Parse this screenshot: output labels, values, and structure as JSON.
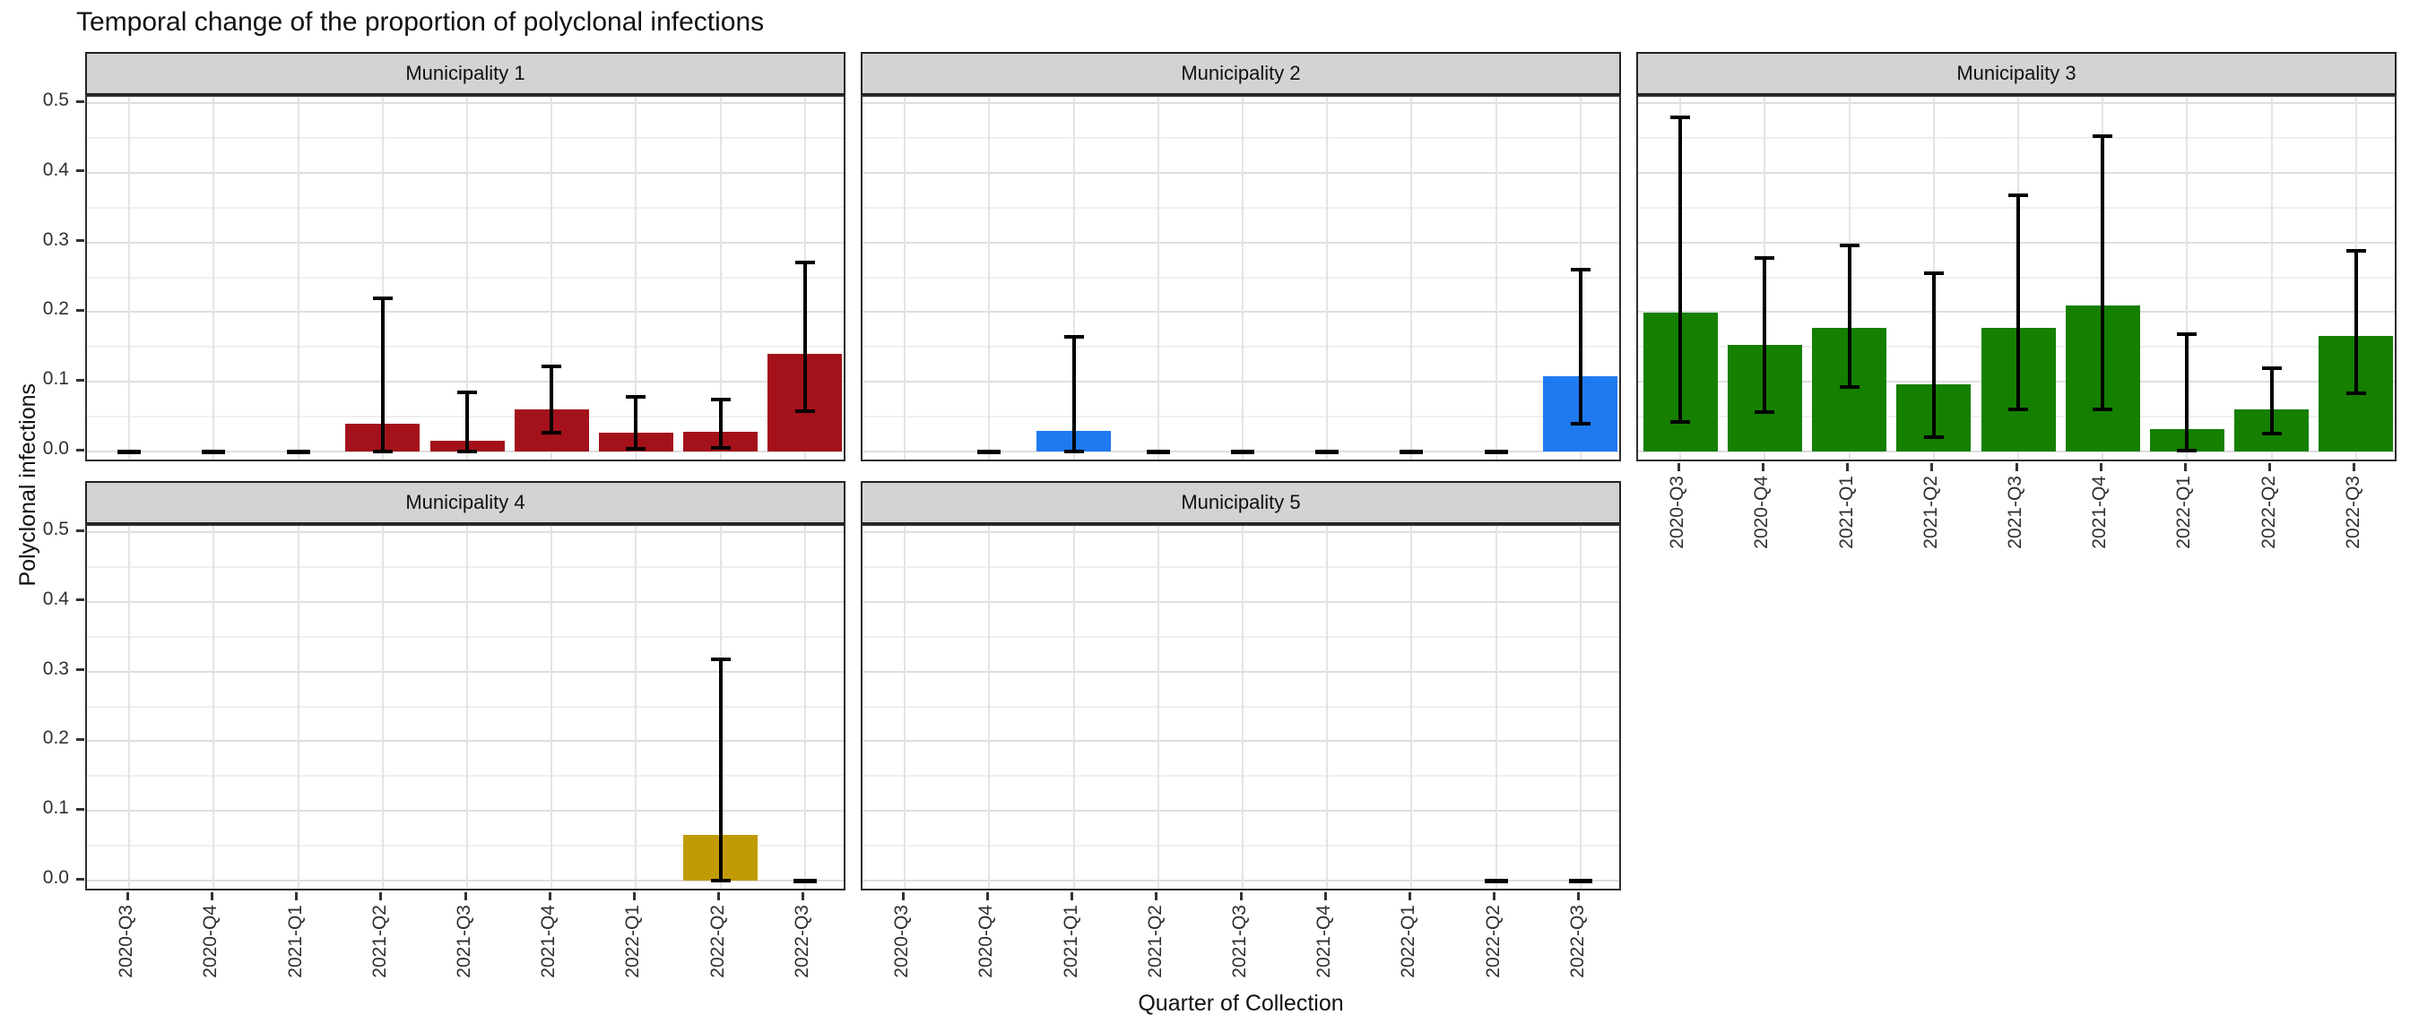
{
  "title": "Temporal change of the proportion of polyclonal infections",
  "axes": {
    "y_label": "Polyclonal infections",
    "x_label": "Quarter of Collection",
    "y_tick_labels": [
      "0.0",
      "0.1",
      "0.2",
      "0.3",
      "0.4",
      "0.5"
    ]
  },
  "chart_data": {
    "type": "bar",
    "subtype": "faceted-bar-with-error-bars",
    "categories": [
      "2020-Q3",
      "2020-Q4",
      "2021-Q1",
      "2021-Q2",
      "2021-Q3",
      "2021-Q4",
      "2022-Q1",
      "2022-Q2",
      "2022-Q3"
    ],
    "xlabel": "Quarter of Collection",
    "ylabel": "Polyclonal infections",
    "ylim": [
      0,
      0.5
    ],
    "grid": "horizontal major 0.1 steps + minor 0.05 steps; vertical major at category centers",
    "legend": "none",
    "facets": [
      {
        "name": "Municipality 1",
        "row": 0,
        "col": 0,
        "color": "#A3121A",
        "bars": [
          {
            "v": 0,
            "lo": 0,
            "hi": 0
          },
          {
            "v": 0,
            "lo": 0,
            "hi": 0
          },
          {
            "v": 0,
            "lo": 0,
            "hi": 0
          },
          {
            "v": 0.04,
            "lo": 0,
            "hi": 0.22
          },
          {
            "v": 0.015,
            "lo": 0,
            "hi": 0.085
          },
          {
            "v": 0.061,
            "lo": 0.027,
            "hi": 0.122
          },
          {
            "v": 0.027,
            "lo": 0.004,
            "hi": 0.079
          },
          {
            "v": 0.028,
            "lo": 0.005,
            "hi": 0.075
          },
          {
            "v": 0.14,
            "lo": 0.058,
            "hi": 0.271
          }
        ]
      },
      {
        "name": "Municipality 2",
        "row": 0,
        "col": 1,
        "color": "#1F7AF0",
        "bars": [
          null,
          {
            "v": 0,
            "lo": 0,
            "hi": 0
          },
          {
            "v": 0.03,
            "lo": 0,
            "hi": 0.165
          },
          {
            "v": 0,
            "lo": 0,
            "hi": 0
          },
          {
            "v": 0,
            "lo": 0,
            "hi": 0
          },
          {
            "v": 0,
            "lo": 0,
            "hi": 0
          },
          {
            "v": 0,
            "lo": 0,
            "hi": 0
          },
          {
            "v": 0,
            "lo": 0,
            "hi": 0
          },
          {
            "v": 0.108,
            "lo": 0.04,
            "hi": 0.261
          }
        ]
      },
      {
        "name": "Municipality 3",
        "row": 0,
        "col": 2,
        "color": "#157F00",
        "bars": [
          {
            "v": 0.199,
            "lo": 0.043,
            "hi": 0.479
          },
          {
            "v": 0.153,
            "lo": 0.057,
            "hi": 0.278
          },
          {
            "v": 0.177,
            "lo": 0.093,
            "hi": 0.295
          },
          {
            "v": 0.096,
            "lo": 0.021,
            "hi": 0.256
          },
          {
            "v": 0.177,
            "lo": 0.06,
            "hi": 0.367
          },
          {
            "v": 0.21,
            "lo": 0.06,
            "hi": 0.452
          },
          {
            "v": 0.032,
            "lo": 0.001,
            "hi": 0.169
          },
          {
            "v": 0.061,
            "lo": 0.026,
            "hi": 0.12
          },
          {
            "v": 0.166,
            "lo": 0.083,
            "hi": 0.288
          }
        ]
      },
      {
        "name": "Municipality 4",
        "row": 1,
        "col": 0,
        "color": "#C19B06",
        "bars": [
          null,
          null,
          null,
          null,
          null,
          null,
          null,
          {
            "v": 0.065,
            "lo": 0,
            "hi": 0.317
          },
          {
            "v": 0,
            "lo": 0,
            "hi": 0
          }
        ]
      },
      {
        "name": "Municipality 5",
        "row": 1,
        "col": 1,
        "color": "#888888",
        "bars": [
          null,
          null,
          null,
          null,
          null,
          null,
          null,
          {
            "v": 0,
            "lo": 0,
            "hi": 0
          },
          {
            "v": 0,
            "lo": 0,
            "hi": 0
          }
        ]
      }
    ]
  }
}
